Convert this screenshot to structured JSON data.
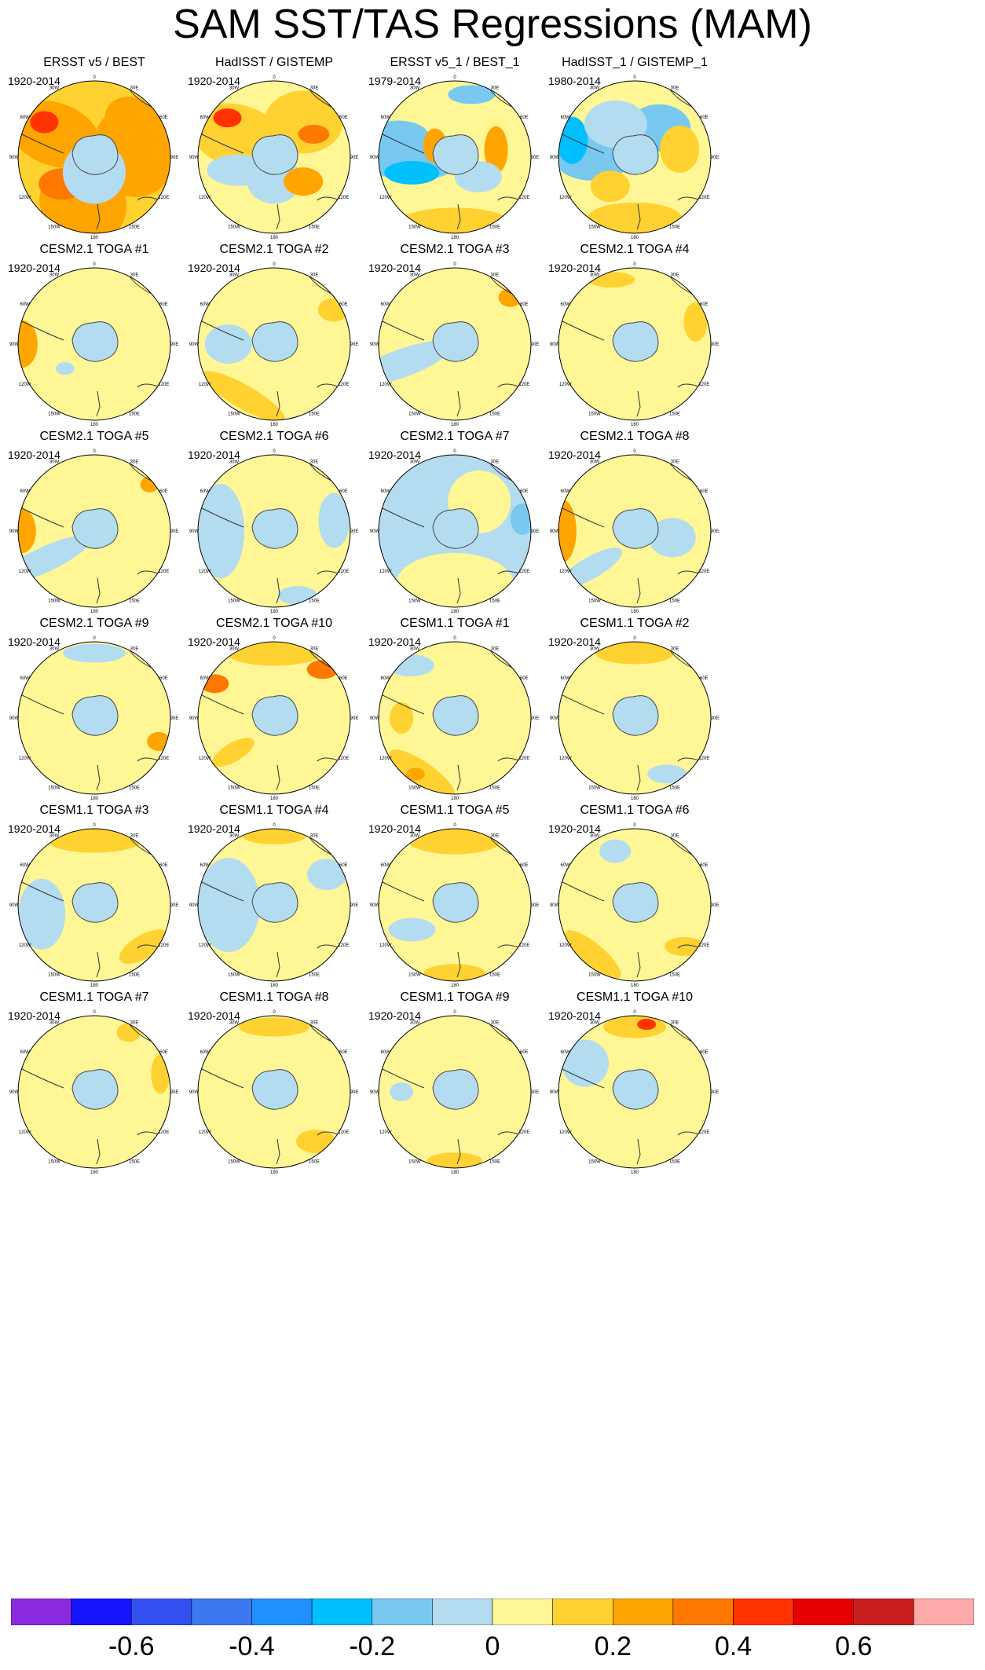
{
  "title": "SAM SST/TAS Regressions (MAM)",
  "panels": [
    {
      "title": "ERSST v5 / BEST",
      "period": "1920-2014"
    },
    {
      "title": "HadISST / GISTEMP",
      "period": "1920-2014"
    },
    {
      "title": "ERSST v5_1 / BEST_1",
      "period": "1979-2014"
    },
    {
      "title": "HadISST_1 / GISTEMP_1",
      "period": "1980-2014"
    },
    {
      "title": "CESM2.1 TOGA #1",
      "period": "1920-2014"
    },
    {
      "title": "CESM2.1 TOGA #2",
      "period": "1920-2014"
    },
    {
      "title": "CESM2.1 TOGA #3",
      "period": "1920-2014"
    },
    {
      "title": "CESM2.1 TOGA #4",
      "period": "1920-2014"
    },
    {
      "title": "CESM2.1 TOGA #5",
      "period": "1920-2014"
    },
    {
      "title": "CESM2.1 TOGA #6",
      "period": "1920-2014"
    },
    {
      "title": "CESM2.1 TOGA #7",
      "period": "1920-2014"
    },
    {
      "title": "CESM2.1 TOGA #8",
      "period": "1920-2014"
    },
    {
      "title": "CESM2.1 TOGA #9",
      "period": "1920-2014"
    },
    {
      "title": "CESM2.1 TOGA #10",
      "period": "1920-2014"
    },
    {
      "title": "CESM1.1 TOGA #1",
      "period": "1920-2014"
    },
    {
      "title": "CESM1.1 TOGA #2",
      "period": "1920-2014"
    },
    {
      "title": "CESM1.1 TOGA #3",
      "period": "1920-2014"
    },
    {
      "title": "CESM1.1 TOGA #4",
      "period": "1920-2014"
    },
    {
      "title": "CESM1.1 TOGA #5",
      "period": "1920-2014"
    },
    {
      "title": "CESM1.1 TOGA #6",
      "period": "1920-2014"
    },
    {
      "title": "CESM1.1 TOGA #7",
      "period": "1920-2014"
    },
    {
      "title": "CESM1.1 TOGA #8",
      "period": "1920-2014"
    },
    {
      "title": "CESM1.1 TOGA #9",
      "period": "1920-2014"
    },
    {
      "title": "CESM1.1 TOGA #10",
      "period": "1920-2014"
    }
  ],
  "lon_labels": [
    "0",
    "30E",
    "60E",
    "90E",
    "120E",
    "150E",
    "180",
    "150W",
    "120W",
    "90W",
    "60W",
    "30W"
  ],
  "colorbar": {
    "labels": [
      "-0.6",
      "-0.4",
      "-0.2",
      "0",
      "0.2",
      "0.4",
      "0.6"
    ],
    "colors": [
      "#8a2be2",
      "#1414ff",
      "#3250f0",
      "#3c78f0",
      "#1e90ff",
      "#00bfff",
      "#78c8f0",
      "#b4dcf0",
      "#fff696",
      "#ffd232",
      "#ffa500",
      "#ff7800",
      "#ff3200",
      "#e60000",
      "#c81e1e",
      "#ffaaaa"
    ]
  }
}
